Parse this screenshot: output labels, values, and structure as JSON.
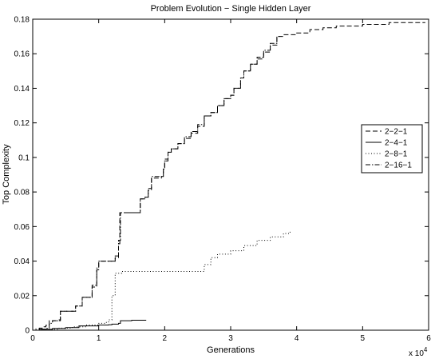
{
  "chart_data": {
    "type": "line",
    "title": "Problem Evolution − Single Hidden Layer",
    "xlabel": "Generations",
    "ylabel": "Top Complexity",
    "x_multiplier_label": {
      "base": "x 10",
      "exponent": "4"
    },
    "xlim": [
      0,
      6
    ],
    "ylim": [
      0,
      0.18
    ],
    "x_ticks": [
      0,
      1,
      2,
      3,
      4,
      5,
      6
    ],
    "x_tick_labels": [
      "0",
      "1",
      "2",
      "3",
      "4",
      "5",
      "6"
    ],
    "y_ticks": [
      0,
      0.02,
      0.04,
      0.06,
      0.08,
      0.1,
      0.12,
      0.14,
      0.16,
      0.18
    ],
    "y_tick_labels": [
      "0",
      "0.02",
      "0.04",
      "0.06",
      "0.08",
      "0.1",
      "0.12",
      "0.14",
      "0.16",
      "0.18"
    ],
    "grid": false,
    "legend_position": "right",
    "series": [
      {
        "name": "2−2−1",
        "dash": "dashed",
        "step": true,
        "points": [
          [
            0,
            0
          ],
          [
            0.05,
            0.0008
          ],
          [
            0.1,
            0.0012
          ],
          [
            0.15,
            0.002
          ],
          [
            0.2,
            0.0028
          ],
          [
            0.25,
            0.0055
          ],
          [
            0.35,
            0.0055
          ],
          [
            0.42,
            0.011
          ],
          [
            0.6,
            0.011
          ],
          [
            0.65,
            0.014
          ],
          [
            0.75,
            0.019
          ],
          [
            0.9,
            0.025
          ],
          [
            0.97,
            0.035
          ],
          [
            1.0,
            0.04
          ],
          [
            1.2,
            0.04
          ],
          [
            1.25,
            0.042
          ],
          [
            1.3,
            0.05
          ],
          [
            1.32,
            0.068
          ],
          [
            1.6,
            0.068
          ],
          [
            1.63,
            0.076
          ],
          [
            1.7,
            0.077
          ],
          [
            1.75,
            0.081
          ],
          [
            1.8,
            0.088
          ],
          [
            1.95,
            0.089
          ],
          [
            1.98,
            0.093
          ],
          [
            2.0,
            0.098
          ],
          [
            2.05,
            0.103
          ],
          [
            2.1,
            0.105
          ],
          [
            2.2,
            0.108
          ],
          [
            2.3,
            0.111
          ],
          [
            2.4,
            0.114
          ],
          [
            2.5,
            0.118
          ],
          [
            2.6,
            0.124
          ],
          [
            2.7,
            0.126
          ],
          [
            2.8,
            0.13
          ],
          [
            2.9,
            0.134
          ],
          [
            3.0,
            0.136
          ],
          [
            3.05,
            0.14
          ],
          [
            3.15,
            0.146
          ],
          [
            3.2,
            0.15
          ],
          [
            3.3,
            0.154
          ],
          [
            3.4,
            0.157
          ],
          [
            3.5,
            0.161
          ],
          [
            3.6,
            0.165
          ],
          [
            3.7,
            0.17
          ],
          [
            3.8,
            0.171
          ],
          [
            4.0,
            0.172
          ],
          [
            4.2,
            0.174
          ],
          [
            4.4,
            0.175
          ],
          [
            4.6,
            0.176
          ],
          [
            5.0,
            0.177
          ],
          [
            5.4,
            0.178
          ],
          [
            5.95,
            0.178
          ]
        ]
      },
      {
        "name": "2−4−1",
        "dash": "solid",
        "step": true,
        "points": [
          [
            0,
            0
          ],
          [
            0.1,
            0.0005
          ],
          [
            0.3,
            0.001
          ],
          [
            0.5,
            0.0015
          ],
          [
            0.7,
            0.0025
          ],
          [
            1.0,
            0.003
          ],
          [
            1.15,
            0.0032
          ],
          [
            1.2,
            0.0035
          ],
          [
            1.3,
            0.004
          ],
          [
            1.33,
            0.0055
          ],
          [
            1.5,
            0.0058
          ],
          [
            1.72,
            0.0058
          ]
        ]
      },
      {
        "name": "2−8−1",
        "dash": "dotted",
        "step": true,
        "points": [
          [
            0,
            0
          ],
          [
            0.2,
            0.0005
          ],
          [
            0.4,
            0.0012
          ],
          [
            0.6,
            0.002
          ],
          [
            0.8,
            0.003
          ],
          [
            1.0,
            0.004
          ],
          [
            1.1,
            0.0045
          ],
          [
            1.15,
            0.006
          ],
          [
            1.2,
            0.02
          ],
          [
            1.25,
            0.033
          ],
          [
            1.35,
            0.034
          ],
          [
            2.0,
            0.034
          ],
          [
            2.5,
            0.034
          ],
          [
            2.6,
            0.038
          ],
          [
            2.7,
            0.042
          ],
          [
            2.8,
            0.044
          ],
          [
            3.0,
            0.046
          ],
          [
            3.2,
            0.049
          ],
          [
            3.4,
            0.052
          ],
          [
            3.6,
            0.054
          ],
          [
            3.8,
            0.056
          ],
          [
            3.9,
            0.057
          ]
        ]
      },
      {
        "name": "2−16−1",
        "dash": "dashdot",
        "step": true,
        "points": [
          [
            0,
            0
          ],
          [
            0.1,
            0.0006
          ],
          [
            0.2,
            0.001
          ],
          [
            0.25,
            0.004
          ],
          [
            0.3,
            0.0055
          ],
          [
            0.4,
            0.006
          ],
          [
            0.42,
            0.011
          ],
          [
            0.6,
            0.011
          ],
          [
            0.65,
            0.014
          ],
          [
            0.75,
            0.019
          ],
          [
            0.9,
            0.026
          ],
          [
            0.97,
            0.036
          ],
          [
            1.0,
            0.04
          ],
          [
            1.2,
            0.04
          ],
          [
            1.25,
            0.043
          ],
          [
            1.3,
            0.052
          ],
          [
            1.33,
            0.068
          ],
          [
            1.6,
            0.068
          ],
          [
            1.63,
            0.076
          ],
          [
            1.7,
            0.077
          ],
          [
            1.75,
            0.082
          ],
          [
            1.8,
            0.089
          ],
          [
            1.95,
            0.089
          ],
          [
            1.98,
            0.094
          ],
          [
            2.0,
            0.099
          ],
          [
            2.05,
            0.103
          ],
          [
            2.1,
            0.105
          ],
          [
            2.2,
            0.108
          ],
          [
            2.3,
            0.112
          ],
          [
            2.4,
            0.115
          ],
          [
            2.5,
            0.119
          ],
          [
            2.6,
            0.124
          ],
          [
            2.7,
            0.126
          ],
          [
            2.8,
            0.13
          ],
          [
            2.9,
            0.134
          ],
          [
            3.0,
            0.136
          ],
          [
            3.05,
            0.14
          ],
          [
            3.15,
            0.146
          ],
          [
            3.2,
            0.15
          ],
          [
            3.3,
            0.154
          ],
          [
            3.4,
            0.158
          ],
          [
            3.5,
            0.162
          ],
          [
            3.6,
            0.166
          ],
          [
            3.7,
            0.17
          ],
          [
            3.75,
            0.17
          ]
        ]
      }
    ]
  }
}
